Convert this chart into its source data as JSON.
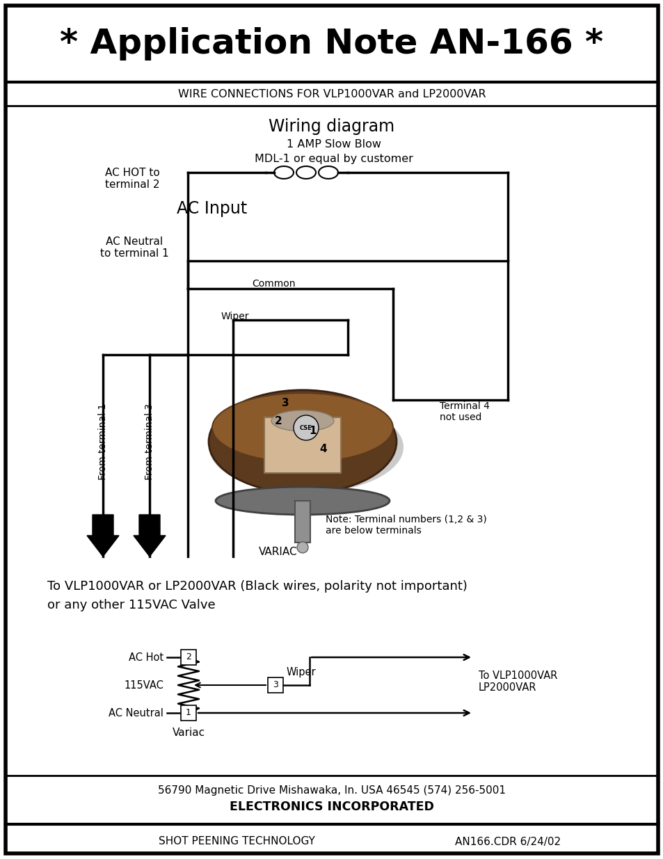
{
  "title": "* Application Note AN-166 *",
  "subtitle": "WIRE CONNECTIONS FOR VLP1000VAR and LP2000VAR",
  "wiring_title": "Wiring diagram",
  "fuse_line1": "1 AMP Slow Blow",
  "fuse_line2": "MDL-1 or equal by customer",
  "ac_hot_label": "AC HOT to\nterminal 2",
  "ac_input_label": "AC Input",
  "ac_neutral_label": "AC Neutral\nto terminal 1",
  "common_label": "Common",
  "wiper_label": "Wiper",
  "from_t1_label": "From terminal 1",
  "from_t3_label": "From terminal 3",
  "terminal4_label": "Terminal 4\nnot used",
  "variac_label": "VARIAC",
  "terminal_note": "Note: Terminal numbers (1,2 & 3)\nare below terminals",
  "bottom_text1": "To VLP1000VAR or LP2000VAR (Black wires, polarity not important)",
  "bottom_text2": "or any other 115VAC Valve",
  "sch_ac_hot": "AC Hot",
  "sch_vac": "115VAC",
  "sch_ac_neutral": "AC Neutral",
  "sch_variac": "Variac",
  "sch_wiper": "Wiper",
  "sch_to_vlp": "To VLP1000VAR\nLP2000VAR",
  "footer_addr": "56790 Magnetic Drive Mishawaka, In. USA 46545 (574) 256-5001",
  "footer_company": "ELECTRONICS INCORPORATED",
  "footer_tech": "SHOT PEENING TECHNOLOGY",
  "footer_code": "AN166.CDR 6/24/02",
  "bg_color": "#ffffff"
}
